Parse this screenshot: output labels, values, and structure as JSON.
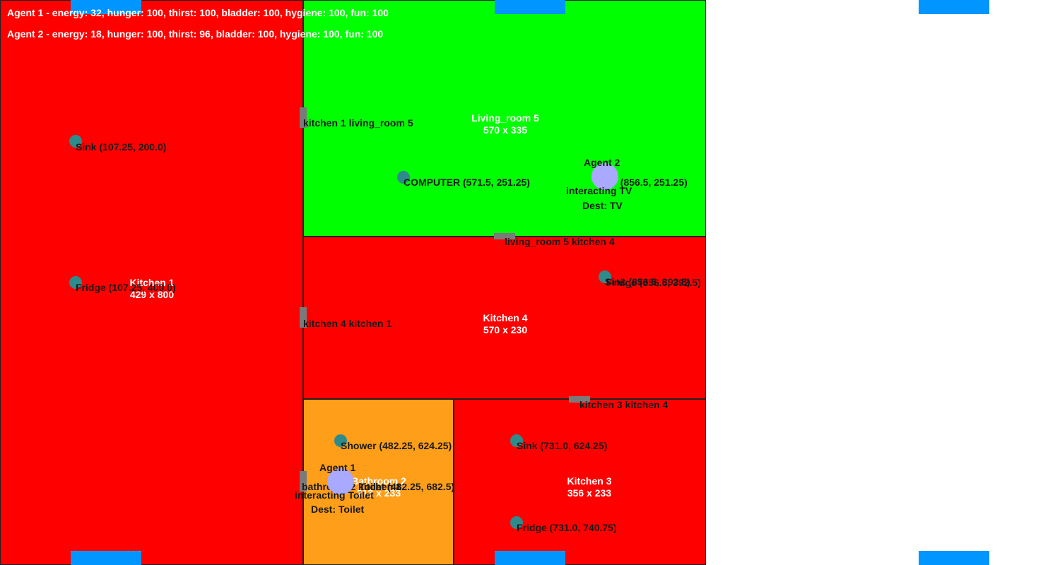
{
  "colors": {
    "kitchen": "#ff0000",
    "living_room": "#00ff00",
    "bathroom": "#ff9e18",
    "object": "#2e8b8b",
    "agent": "#a9a9ff",
    "door": "#7a7a7a",
    "marker": "#0095ff"
  },
  "hud": {
    "agent1_stats": "Agent 1 - energy: 32, hunger: 100, thirst: 100, bladder: 100, hygiene: 100, fun: 100",
    "agent2_stats": "Agent 2 - energy: 18, hunger: 100, thirst: 96, bladder: 100, hygiene: 100, fun: 100"
  },
  "rooms": {
    "kitchen1": {
      "name": "Kitchen 1",
      "size": "429 x 800"
    },
    "living_room5": {
      "name": "Living_room 5",
      "size": "570 x 335"
    },
    "kitchen4": {
      "name": "Kitchen 4",
      "size": "570 x 230"
    },
    "bathroom2": {
      "name": "Bathroom 2",
      "size": "213 x 233"
    },
    "kitchen3": {
      "name": "Kitchen 3",
      "size": "356 x 233"
    }
  },
  "doors": {
    "k1_lr5": "kitchen 1 living_room 5",
    "k4_k1": "kitchen 4 kitchen 1",
    "lr5_k4": "living_room 5 kitchen 4",
    "k3_k4": "kitchen 3 kitchen 4",
    "bath_k1": "bathroom 2 kitchen 1"
  },
  "objects": {
    "k1_sink": "Sink (107.25, 200.0)",
    "k1_fridge": "Fridge (107.25, 400.0)",
    "lr_computer": "COMPUTER (571.5, 251.25)",
    "lr_tv": "TV (856.5, 251.25)",
    "k4_sink": "Sink (856.5, 392.5)",
    "k4_fridge": "Fridge (856.5, 392.5)",
    "bath_shower": "Shower (482.25, 624.25)",
    "bath_toilet": "Toilet (482.25, 682.5)",
    "k3_sink": "Sink (731.0, 624.25)",
    "k3_fridge": "Fridge (731.0, 740.75)"
  },
  "agents": {
    "agent1": {
      "name": "Agent 1",
      "status": "interacting Toilet",
      "dest": "Dest: Toilet"
    },
    "agent2": {
      "name": "Agent 2",
      "status": "interacting TV",
      "dest": "Dest: TV"
    }
  }
}
